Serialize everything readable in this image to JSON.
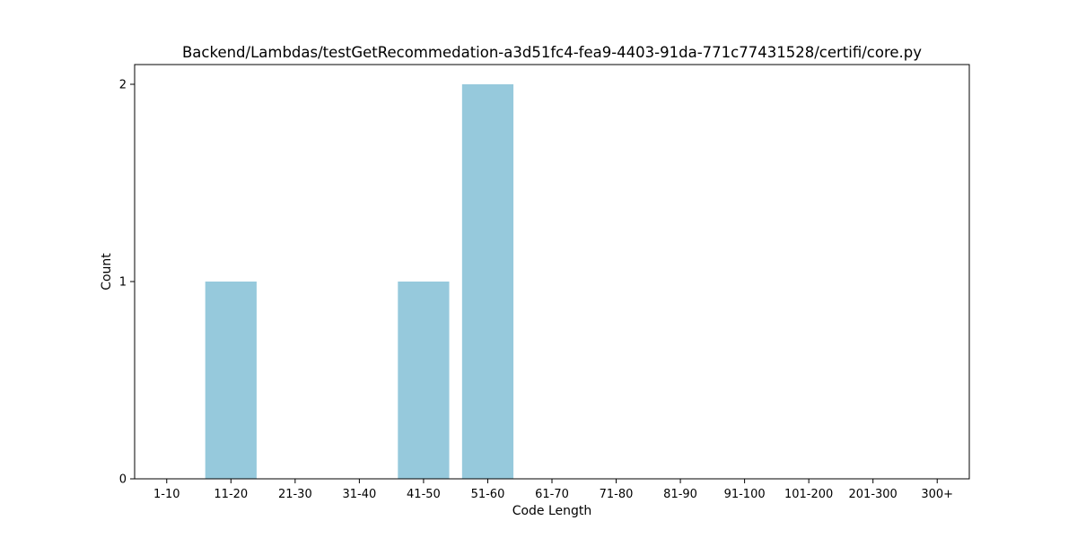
{
  "chart_data": {
    "type": "bar",
    "title": "Backend/Lambdas/testGetRecommedation-a3d51fc4-fea9-4403-91da-771c77431528/certifi/core.py",
    "xlabel": "Code Length",
    "ylabel": "Count",
    "categories": [
      "1-10",
      "11-20",
      "21-30",
      "31-40",
      "41-50",
      "51-60",
      "61-70",
      "71-80",
      "81-90",
      "91-100",
      "101-200",
      "201-300",
      "300+"
    ],
    "values": [
      0,
      1,
      0,
      0,
      1,
      2,
      0,
      0,
      0,
      0,
      0,
      0,
      0
    ],
    "ylim": [
      0,
      2.1
    ],
    "yticks": [
      0,
      1,
      2
    ],
    "grid": false,
    "bar_color": "#96c9dc"
  }
}
